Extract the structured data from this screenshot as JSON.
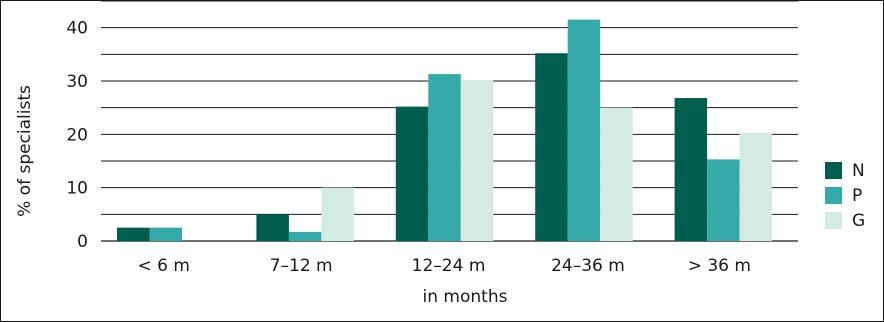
{
  "chart_data": {
    "type": "bar",
    "categories": [
      "< 6 m",
      "7–12 m",
      "12–24 m",
      "24–36 m",
      "> 36 m"
    ],
    "series": [
      {
        "name": "N",
        "color": "#005e4e",
        "values": [
          2.5,
          5,
          25.2,
          35.2,
          26.8
        ]
      },
      {
        "name": "P",
        "color": "#36aaaa",
        "values": [
          2.5,
          1.7,
          31.3,
          41.5,
          15.3
        ]
      },
      {
        "name": "G",
        "color": "#d3ebe3",
        "values": [
          0,
          10,
          30.2,
          25,
          20.3
        ]
      }
    ],
    "title": "",
    "xlabel": "in months",
    "ylabel": "% of specialists",
    "ylim": [
      0,
      45
    ],
    "yticks": [
      0,
      10,
      20,
      30,
      40
    ],
    "grid": true,
    "gridline_step": 5,
    "legend_position": "right"
  }
}
